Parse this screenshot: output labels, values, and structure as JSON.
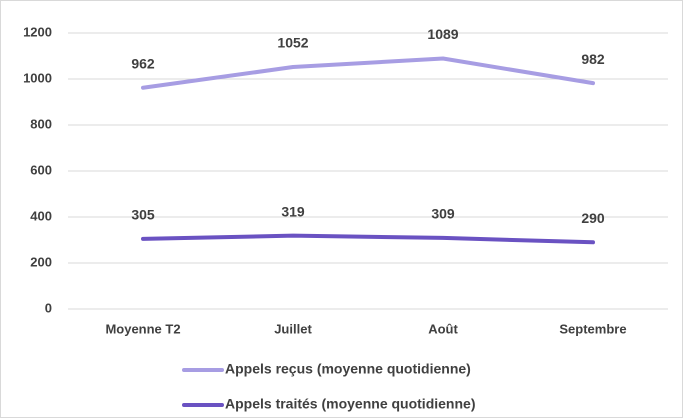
{
  "chart_data": {
    "type": "line",
    "categories": [
      "Moyenne T2",
      "Juillet",
      "Août",
      "Septembre"
    ],
    "series": [
      {
        "name": "Appels reçus (moyenne quotidienne)",
        "color": "#a79de3",
        "values": [
          962,
          1052,
          1089,
          982
        ]
      },
      {
        "name": "Appels traités (moyenne quotidienne)",
        "color": "#6a52c2",
        "values": [
          305,
          319,
          309,
          290
        ]
      }
    ],
    "ylim": [
      0,
      1200
    ],
    "yticks": [
      0,
      200,
      400,
      600,
      800,
      1000,
      1200
    ],
    "grid": true,
    "legend": "bottom"
  }
}
